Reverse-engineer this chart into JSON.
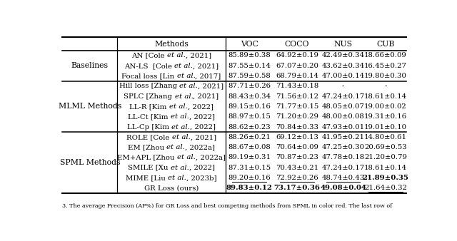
{
  "caption": "3. The average Precision (AP%) for GR Loss and best competing methods from SPML in color red. The last row of",
  "headers": [
    "Methods",
    "VOC",
    "COCO",
    "NUS",
    "CUB"
  ],
  "groups": [
    {
      "label": "Baselines",
      "rows": [
        {
          "method": "AN [Cole et al., 2021]",
          "voc": "85.89±0.38",
          "coco": "64.92±0.19",
          "nus": "42.49±0.34",
          "cub": "18.66±0.09",
          "bold": [],
          "underline": []
        },
        {
          "method": "AN-LS  [Cole et al., 2021]",
          "voc": "87.55±0.14",
          "coco": "67.07±0.20",
          "nus": "43.62±0.34",
          "cub": "16.45±0.27",
          "bold": [],
          "underline": []
        },
        {
          "method": "Focal loss [Lin et al., 2017]",
          "voc": "87.59±0.58",
          "coco": "68.79±0.14",
          "nus": "47.00±0.14",
          "cub": "19.80±0.30",
          "bold": [],
          "underline": []
        }
      ]
    },
    {
      "label": "MLML Methods",
      "rows": [
        {
          "method": "Hill loss [Zhang et al., 2021]",
          "voc": "87.71±0.26",
          "coco": "71.43±0.18",
          "nus": "-",
          "cub": "-",
          "bold": [],
          "underline": []
        },
        {
          "method": "SPLC [Zhang et al., 2021]",
          "voc": "88.43±0.34",
          "coco": "71.56±0.12",
          "nus": "47.24±0.17",
          "cub": "18.61±0.14",
          "bold": [],
          "underline": []
        },
        {
          "method": "LL-R [Kim et al., 2022]",
          "voc": "89.15±0.16",
          "coco": "71.77±0.15",
          "nus": "48.05±0.07",
          "cub": "19.00±0.02",
          "bold": [],
          "underline": []
        },
        {
          "method": "LL-Ct [Kim et al., 2022]",
          "voc": "88.97±0.15",
          "coco": "71.20±0.29",
          "nus": "48.00±0.08",
          "cub": "19.31±0.16",
          "bold": [],
          "underline": []
        },
        {
          "method": "LL-Cp [Kim et al., 2022]",
          "voc": "88.62±0.23",
          "coco": "70.84±0.33",
          "nus": "47.93±0.01",
          "cub": "19.01±0.10",
          "bold": [],
          "underline": []
        }
      ]
    },
    {
      "label": "SPML Methods",
      "rows": [
        {
          "method": "ROLE [Cole et al., 2021]",
          "voc": "88.26±0.21",
          "coco": "69.12±0.13",
          "nus": "41.95±0.21",
          "cub": "14.80±0.61",
          "bold": [],
          "underline": []
        },
        {
          "method": "EM [Zhou et al., 2022a]",
          "voc": "88.67±0.08",
          "coco": "70.64±0.09",
          "nus": "47.25±0.30",
          "cub": "20.69±0.53",
          "bold": [],
          "underline": []
        },
        {
          "method": "EM+APL [Zhou et al., 2022a]",
          "voc": "89.19±0.31",
          "coco": "70.87±0.23",
          "nus": "47.78±0.18",
          "cub": "21.20±0.79",
          "bold": [],
          "underline": []
        },
        {
          "method": "SMILE [Xu et al., 2022]",
          "voc": "87.31±0.15",
          "coco": "70.43±0.21",
          "nus": "47.24±0.17",
          "cub": "18.61±0.14",
          "bold": [],
          "underline": []
        },
        {
          "method": "MIME [Liu et al., 2023b]",
          "voc": "89.20±0.16",
          "coco": "72.92±0.26",
          "nus": "48.74±0.43",
          "cub": "21.89±0.35",
          "bold": [
            "cub"
          ],
          "underline": [
            "voc",
            "coco",
            "nus"
          ]
        },
        {
          "method": "GR Loss (ours)",
          "voc": "89.83±0.12",
          "coco": "73.17±0.36",
          "nus": "49.08±0.04",
          "cub": "21.64±0.32",
          "bold": [
            "voc",
            "coco",
            "nus"
          ],
          "underline": [
            "cub"
          ]
        }
      ]
    }
  ],
  "figsize": [
    6.4,
    3.38
  ],
  "dpi": 100
}
